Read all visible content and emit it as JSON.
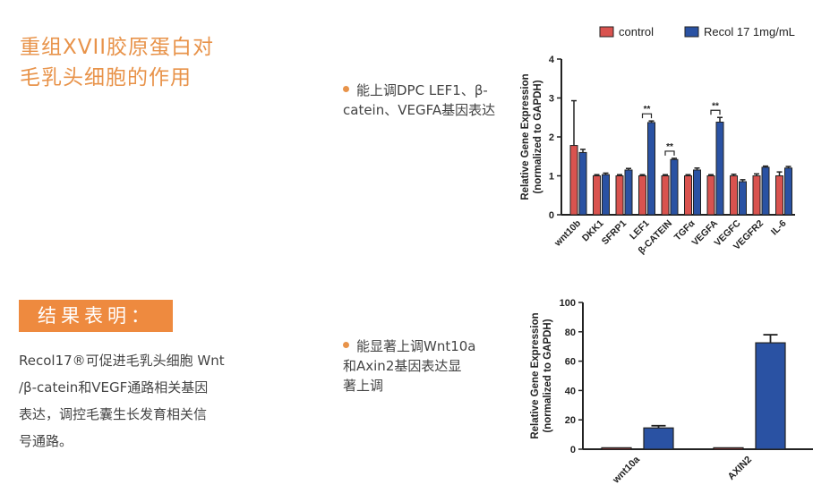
{
  "page": {
    "title_lines": [
      "重组XVII胶原蛋白对",
      "毛乳头细胞的作用"
    ],
    "bullet1_lines": [
      "能上调DPC LEF1、β-",
      "catein、VEGFA基因表达"
    ],
    "bullet2_lines": [
      "能显著上调Wnt10a",
      "和Axin2基因表达显",
      "著上调"
    ],
    "result_title": "结果表明：",
    "result_lines": [
      "Recol17®可促进毛乳头细胞 Wnt",
      "/β-catein和VEGF通路相关基因",
      "表达，调控毛囊生长发育相关信",
      "号通路。"
    ]
  },
  "colors": {
    "accent": "#e8934a",
    "control": "#d9534f",
    "recol": "#2a52a3"
  },
  "chart_data": [
    {
      "type": "bar",
      "categories": [
        "wnt10b",
        "DKK1",
        "SFRP1",
        "LEF1",
        "β-CATEIN",
        "TGFα",
        "VEGFA",
        "VEGFC",
        "VEGFR2",
        "IL-6"
      ],
      "series": [
        {
          "name": "control",
          "values": [
            1.78,
            1.0,
            1.0,
            1.0,
            1.0,
            1.0,
            1.0,
            1.0,
            1.0,
            1.0
          ],
          "errors": [
            1.15,
            0.03,
            0.03,
            0.03,
            0.03,
            0.03,
            0.03,
            0.04,
            0.05,
            0.1
          ]
        },
        {
          "name": "Recol 17 1mg/mL",
          "values": [
            1.6,
            1.03,
            1.15,
            2.37,
            1.42,
            1.15,
            2.38,
            0.85,
            1.22,
            1.2
          ],
          "errors": [
            0.08,
            0.04,
            0.04,
            0.04,
            0.03,
            0.05,
            0.12,
            0.05,
            0.03,
            0.04
          ]
        }
      ],
      "significance": [
        "",
        "",
        "",
        "**",
        "**",
        "",
        "**",
        "",
        "",
        ""
      ],
      "ylabel_lines": [
        "Relative Gene Expression",
        "(normalized to GAPDH)"
      ],
      "ylim": [
        0,
        4
      ],
      "yticks": [
        "0",
        "1",
        "2",
        "3",
        "4"
      ],
      "legend": "top"
    },
    {
      "type": "bar",
      "categories": [
        "wnt10a",
        "AXIN2"
      ],
      "series": [
        {
          "name": "control",
          "values": [
            1.0,
            1.0
          ],
          "errors": [
            0,
            0
          ]
        },
        {
          "name": "Recol 17",
          "values": [
            14.5,
            72.5
          ],
          "errors": [
            1.5,
            5.5
          ]
        }
      ],
      "ylabel_lines": [
        "Relative Gene Expression",
        "(normalized to GAPDH)"
      ],
      "ylim": [
        0,
        100
      ],
      "yticks": [
        "0",
        "20",
        "40",
        "60",
        "80",
        "100"
      ]
    }
  ]
}
